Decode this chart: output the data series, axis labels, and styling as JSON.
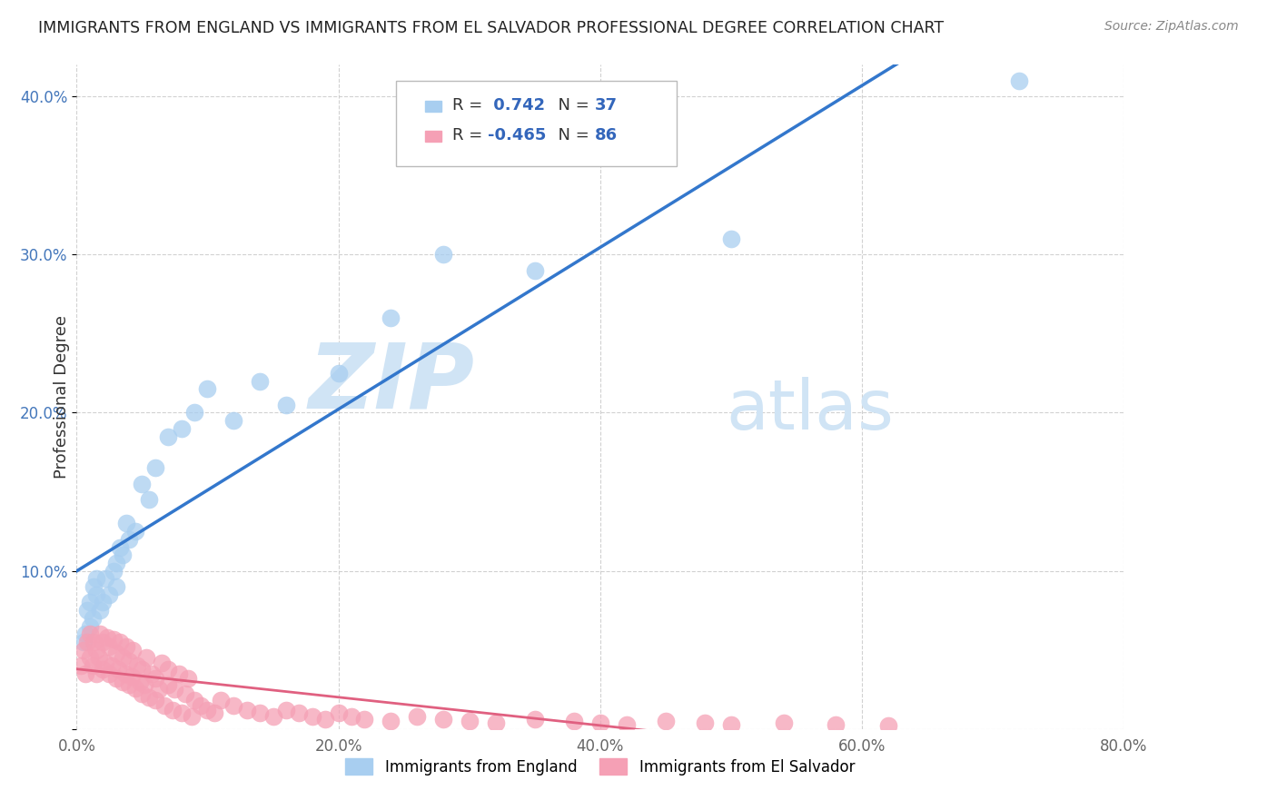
{
  "title": "IMMIGRANTS FROM ENGLAND VS IMMIGRANTS FROM EL SALVADOR PROFESSIONAL DEGREE CORRELATION CHART",
  "source": "Source: ZipAtlas.com",
  "ylabel": "Professional Degree",
  "series1_label": "Immigrants from England",
  "series2_label": "Immigrants from El Salvador",
  "series1_R": 0.742,
  "series1_N": 37,
  "series2_R": -0.465,
  "series2_N": 86,
  "series1_color": "#a8cef0",
  "series2_color": "#f5a0b5",
  "series1_line_color": "#3377cc",
  "series2_line_color": "#e06080",
  "watermark_zip": "ZIP",
  "watermark_atlas": "atlas",
  "xlim": [
    0.0,
    0.8
  ],
  "ylim": [
    0.0,
    0.42
  ],
  "xticks": [
    0.0,
    0.2,
    0.4,
    0.6,
    0.8
  ],
  "yticks": [
    0.0,
    0.1,
    0.2,
    0.3,
    0.4
  ],
  "xtick_labels": [
    "0.0%",
    "20.0%",
    "40.0%",
    "60.0%",
    "80.0%"
  ],
  "ytick_labels": [
    "",
    "10.0%",
    "20.0%",
    "30.0%",
    "40.0%"
  ],
  "series1_x": [
    0.005,
    0.007,
    0.008,
    0.01,
    0.01,
    0.012,
    0.013,
    0.015,
    0.015,
    0.018,
    0.02,
    0.022,
    0.025,
    0.028,
    0.03,
    0.03,
    0.033,
    0.035,
    0.038,
    0.04,
    0.045,
    0.05,
    0.055,
    0.06,
    0.07,
    0.08,
    0.09,
    0.1,
    0.12,
    0.14,
    0.16,
    0.2,
    0.24,
    0.28,
    0.35,
    0.5,
    0.72
  ],
  "series1_y": [
    0.055,
    0.06,
    0.075,
    0.065,
    0.08,
    0.07,
    0.09,
    0.085,
    0.095,
    0.075,
    0.08,
    0.095,
    0.085,
    0.1,
    0.09,
    0.105,
    0.115,
    0.11,
    0.13,
    0.12,
    0.125,
    0.155,
    0.145,
    0.165,
    0.185,
    0.19,
    0.2,
    0.215,
    0.195,
    0.22,
    0.205,
    0.225,
    0.26,
    0.3,
    0.29,
    0.31,
    0.41
  ],
  "series2_x": [
    0.003,
    0.005,
    0.007,
    0.008,
    0.01,
    0.01,
    0.012,
    0.013,
    0.015,
    0.015,
    0.017,
    0.018,
    0.02,
    0.02,
    0.022,
    0.023,
    0.025,
    0.025,
    0.027,
    0.028,
    0.03,
    0.03,
    0.032,
    0.033,
    0.035,
    0.035,
    0.037,
    0.038,
    0.04,
    0.04,
    0.042,
    0.043,
    0.045,
    0.046,
    0.048,
    0.05,
    0.05,
    0.052,
    0.053,
    0.055,
    0.057,
    0.06,
    0.06,
    0.063,
    0.065,
    0.067,
    0.07,
    0.07,
    0.073,
    0.075,
    0.078,
    0.08,
    0.083,
    0.085,
    0.088,
    0.09,
    0.095,
    0.1,
    0.105,
    0.11,
    0.12,
    0.13,
    0.14,
    0.15,
    0.16,
    0.17,
    0.18,
    0.19,
    0.2,
    0.21,
    0.22,
    0.24,
    0.26,
    0.28,
    0.3,
    0.32,
    0.35,
    0.38,
    0.4,
    0.42,
    0.45,
    0.48,
    0.5,
    0.54,
    0.58,
    0.62
  ],
  "series2_y": [
    0.04,
    0.05,
    0.035,
    0.055,
    0.045,
    0.06,
    0.04,
    0.055,
    0.035,
    0.05,
    0.045,
    0.06,
    0.038,
    0.055,
    0.042,
    0.058,
    0.035,
    0.052,
    0.04,
    0.057,
    0.032,
    0.048,
    0.038,
    0.055,
    0.03,
    0.045,
    0.035,
    0.052,
    0.028,
    0.043,
    0.033,
    0.05,
    0.026,
    0.04,
    0.03,
    0.022,
    0.038,
    0.028,
    0.045,
    0.02,
    0.035,
    0.018,
    0.032,
    0.025,
    0.042,
    0.015,
    0.028,
    0.038,
    0.012,
    0.025,
    0.035,
    0.01,
    0.022,
    0.032,
    0.008,
    0.018,
    0.015,
    0.012,
    0.01,
    0.018,
    0.015,
    0.012,
    0.01,
    0.008,
    0.012,
    0.01,
    0.008,
    0.006,
    0.01,
    0.008,
    0.006,
    0.005,
    0.008,
    0.006,
    0.005,
    0.004,
    0.006,
    0.005,
    0.004,
    0.003,
    0.005,
    0.004,
    0.003,
    0.004,
    0.003,
    0.002
  ],
  "series1_trendline_x": [
    0.0,
    0.8
  ],
  "series2_trendline_x": [
    0.0,
    0.55
  ]
}
